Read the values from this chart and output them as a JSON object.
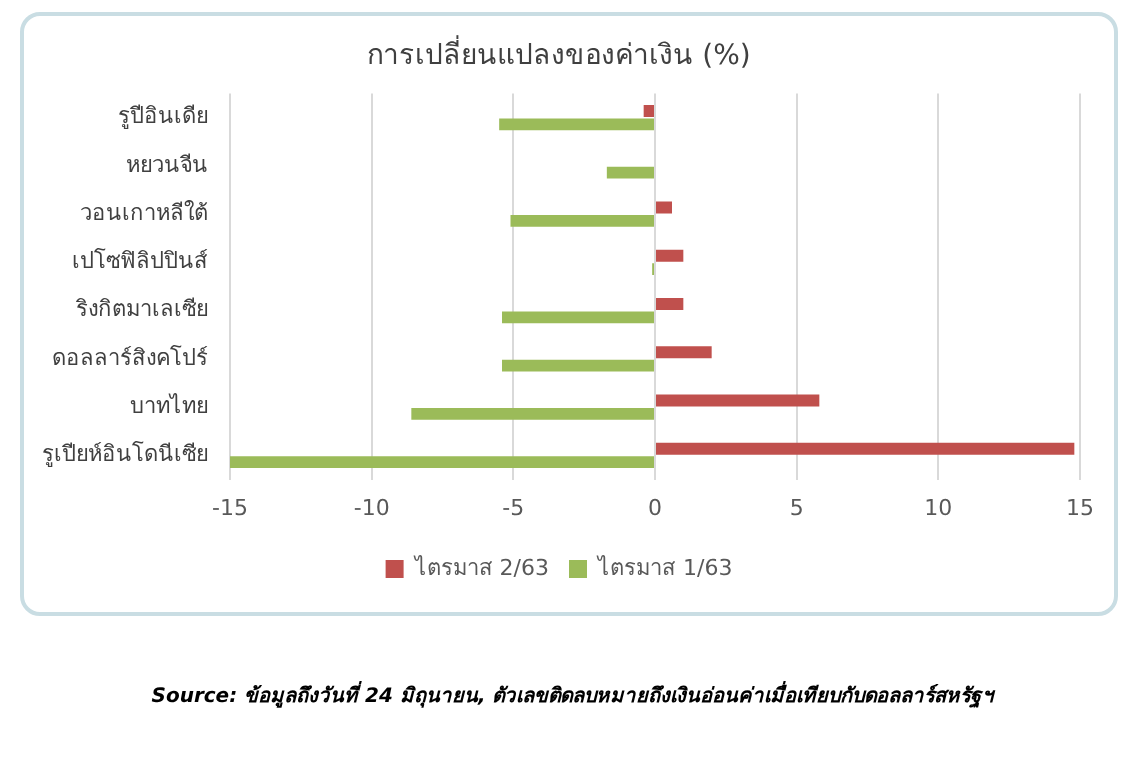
{
  "chart_data": {
    "type": "bar",
    "orientation": "horizontal",
    "title": "การเปลี่ยนแปลงของค่าเงิน (%)",
    "categories": [
      "รูปีอินเดีย",
      "หยวนจีน",
      "วอนเกาหลีใต้",
      "เปโซฟิลิปปินส์",
      "ริงกิตมาเลเซีย",
      "ดอลลาร์สิงคโปร์",
      "บาทไทย",
      "รูเปียห์อินโดนีเซีย"
    ],
    "series": [
      {
        "name": "ไตรมาส 2/63",
        "color": "#c0504d",
        "values": [
          -0.4,
          null,
          0.6,
          1.0,
          1.0,
          2.0,
          5.8,
          14.8
        ]
      },
      {
        "name": "ไตรมาส 1/63",
        "color": "#9bbb59",
        "values": [
          -5.5,
          -1.7,
          -5.1,
          -0.1,
          -5.4,
          -5.4,
          -8.6,
          -15.0
        ]
      }
    ],
    "xlim": [
      -15,
      15
    ],
    "xticks": [
      -15,
      -10,
      -5,
      0,
      5,
      10,
      15
    ],
    "grid": "x",
    "legend": "bottom",
    "annotations": [
      "Source: ข้อมูลถึงวันที่ 24 มิถุนายน, ตัวเลขติดลบหมายถึงเงินอ่อนค่าเมื่อเทียบกับดอลลาร์สหรัฐฯ"
    ]
  }
}
